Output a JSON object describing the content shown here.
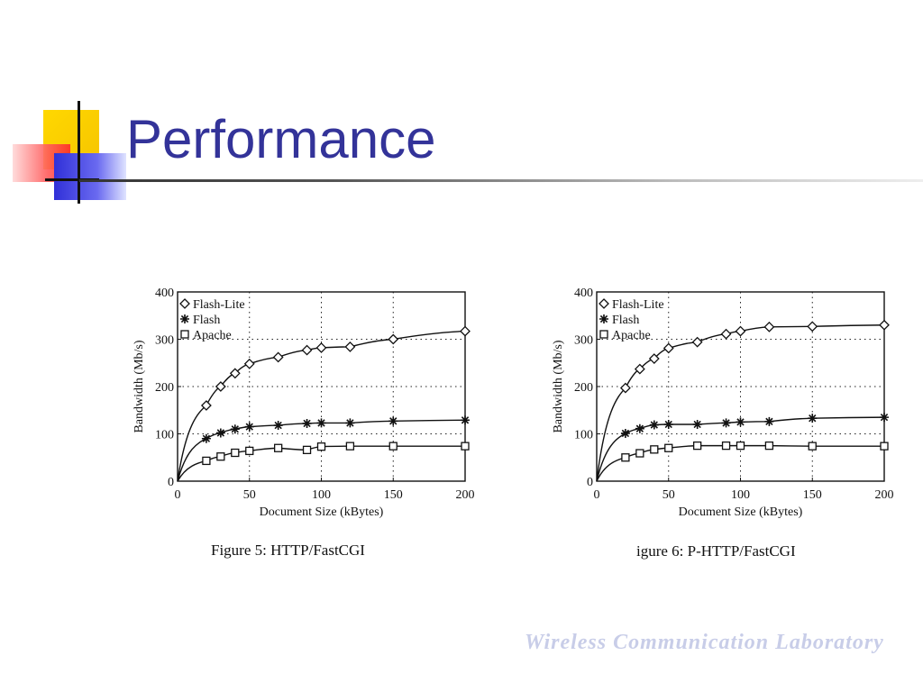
{
  "slide": {
    "title": "Performance",
    "watermark": "Wireless Communication Laboratory"
  },
  "colors": {
    "title": "#333399",
    "line": "#111111"
  },
  "chart_data": [
    {
      "type": "line",
      "caption": "Figure 5: HTTP/FastCGI",
      "xlabel": "Document Size (kBytes)",
      "ylabel": "Bandwidth (Mb/s)",
      "xlim": [
        0,
        200
      ],
      "ylim": [
        0,
        400
      ],
      "xticks": [
        0,
        50,
        100,
        150,
        200
      ],
      "yticks": [
        0,
        100,
        200,
        300,
        400
      ],
      "grid": true,
      "legend_position": "top-left",
      "series": [
        {
          "name": "Flash-Lite",
          "marker": "diamond",
          "x": [
            20,
            30,
            40,
            50,
            70,
            90,
            100,
            120,
            150,
            200
          ],
          "y": [
            160,
            200,
            228,
            248,
            262,
            277,
            282,
            284,
            300,
            317
          ]
        },
        {
          "name": "Flash",
          "marker": "star",
          "x": [
            20,
            30,
            40,
            50,
            70,
            90,
            100,
            120,
            150,
            200
          ],
          "y": [
            90,
            102,
            110,
            115,
            118,
            122,
            123,
            123,
            127,
            129
          ]
        },
        {
          "name": "Apache",
          "marker": "square",
          "x": [
            20,
            30,
            40,
            50,
            70,
            90,
            100,
            120,
            150,
            200
          ],
          "y": [
            43,
            52,
            60,
            64,
            70,
            66,
            73,
            74,
            74,
            74
          ]
        }
      ]
    },
    {
      "type": "line",
      "caption": "igure 6: P-HTTP/FastCGI",
      "xlabel": "Document Size (kBytes)",
      "ylabel": "Bandwidth (Mb/s)",
      "xlim": [
        0,
        200
      ],
      "ylim": [
        0,
        400
      ],
      "xticks": [
        0,
        50,
        100,
        150,
        200
      ],
      "yticks": [
        0,
        100,
        200,
        300,
        400
      ],
      "grid": true,
      "legend_position": "top-left",
      "series": [
        {
          "name": "Flash-Lite",
          "marker": "diamond",
          "x": [
            20,
            30,
            40,
            50,
            70,
            90,
            100,
            120,
            150,
            200
          ],
          "y": [
            197,
            237,
            259,
            281,
            294,
            311,
            317,
            326,
            327,
            330
          ]
        },
        {
          "name": "Flash",
          "marker": "star",
          "x": [
            20,
            30,
            40,
            50,
            70,
            90,
            100,
            120,
            150,
            200
          ],
          "y": [
            101,
            111,
            119,
            120,
            120,
            123,
            125,
            126,
            133,
            135
          ]
        },
        {
          "name": "Apache",
          "marker": "square",
          "x": [
            20,
            30,
            40,
            50,
            70,
            90,
            100,
            120,
            150,
            200
          ],
          "y": [
            50,
            59,
            67,
            70,
            75,
            75,
            75,
            75,
            74,
            74
          ]
        }
      ]
    }
  ]
}
